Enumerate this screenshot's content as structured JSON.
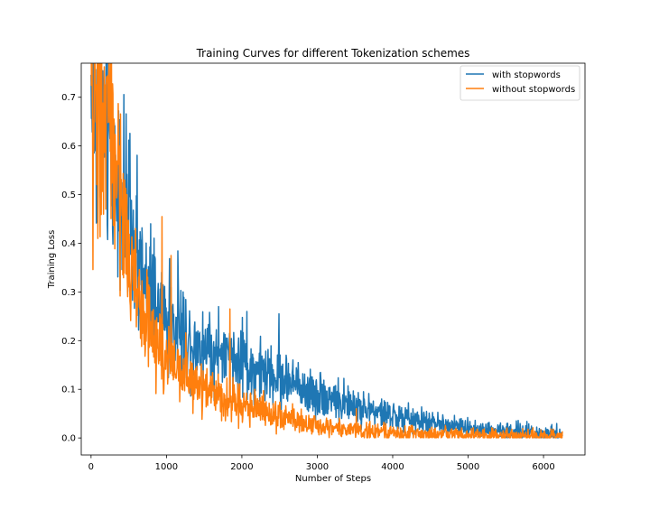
{
  "chart_data": {
    "type": "line",
    "title": "Training Curves for different Tokenization schemes",
    "xlabel": "Number of Steps",
    "ylabel": "Training Loss",
    "xlim": [
      -130,
      6550
    ],
    "ylim": [
      -0.035,
      0.77
    ],
    "xticks": [
      0,
      1000,
      2000,
      3000,
      4000,
      5000,
      6000
    ],
    "xtick_labels": [
      "0",
      "1000",
      "2000",
      "3000",
      "4000",
      "5000",
      "6000"
    ],
    "yticks": [
      0.0,
      0.1,
      0.2,
      0.3,
      0.4,
      0.5,
      0.6,
      0.7
    ],
    "ytick_labels": [
      "0.0",
      "0.1",
      "0.2",
      "0.3",
      "0.4",
      "0.5",
      "0.6",
      "0.7"
    ],
    "legend_position": "top-right",
    "grid": false,
    "series": [
      {
        "name": "with stopwords",
        "color": "#1f77b4",
        "x_start": 0,
        "x_end": 6250,
        "points": 1250,
        "envelope": [
          [
            0,
            0.7
          ],
          [
            100,
            0.67
          ],
          [
            200,
            0.64
          ],
          [
            300,
            0.57
          ],
          [
            400,
            0.5
          ],
          [
            500,
            0.43
          ],
          [
            600,
            0.36
          ],
          [
            700,
            0.31
          ],
          [
            800,
            0.28
          ],
          [
            1000,
            0.24
          ],
          [
            1250,
            0.21
          ],
          [
            1500,
            0.185
          ],
          [
            1750,
            0.165
          ],
          [
            2000,
            0.15
          ],
          [
            2500,
            0.12
          ],
          [
            3000,
            0.09
          ],
          [
            3500,
            0.065
          ],
          [
            4000,
            0.045
          ],
          [
            4500,
            0.03
          ],
          [
            5000,
            0.02
          ],
          [
            5500,
            0.013
          ],
          [
            6000,
            0.01
          ],
          [
            6250,
            0.008
          ]
        ],
        "noise_scale": 0.1,
        "spikes": [
          [
            1690,
            0.27
          ],
          [
            2065,
            0.26
          ],
          [
            2490,
            0.255
          ],
          [
            1220,
            0.3
          ],
          [
            790,
            0.44
          ]
        ]
      },
      {
        "name": "without stopwords",
        "color": "#ff7f0e",
        "x_start": 0,
        "x_end": 6250,
        "points": 1250,
        "envelope": [
          [
            0,
            0.7
          ],
          [
            100,
            0.68
          ],
          [
            200,
            0.64
          ],
          [
            300,
            0.58
          ],
          [
            400,
            0.48
          ],
          [
            500,
            0.38
          ],
          [
            600,
            0.3
          ],
          [
            700,
            0.24
          ],
          [
            800,
            0.2
          ],
          [
            1000,
            0.16
          ],
          [
            1250,
            0.13
          ],
          [
            1500,
            0.105
          ],
          [
            1750,
            0.085
          ],
          [
            2000,
            0.07
          ],
          [
            2500,
            0.045
          ],
          [
            3000,
            0.025
          ],
          [
            3500,
            0.015
          ],
          [
            4000,
            0.01
          ],
          [
            4500,
            0.007
          ],
          [
            5000,
            0.005
          ],
          [
            5500,
            0.004
          ],
          [
            6000,
            0.003
          ],
          [
            6250,
            0.003
          ]
        ],
        "noise_scale": 0.1,
        "spikes": [
          [
            15,
            0.73
          ],
          [
            940,
            0.455
          ],
          [
            1060,
            0.375
          ],
          [
            1840,
            0.265
          ],
          [
            3520,
            0.06
          ]
        ]
      }
    ]
  }
}
